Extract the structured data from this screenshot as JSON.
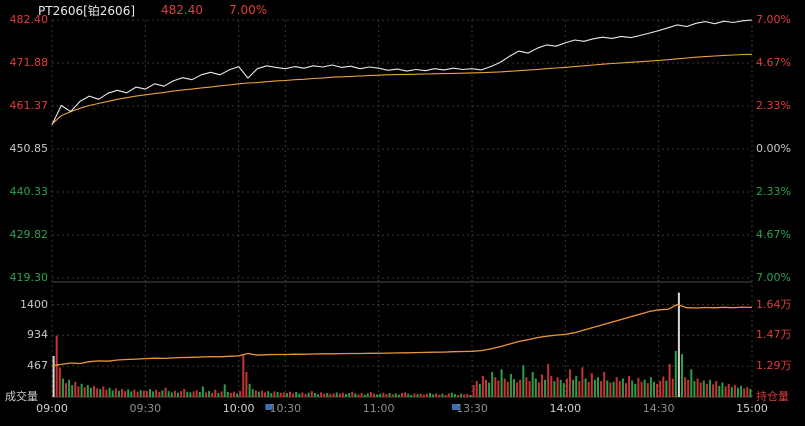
{
  "header": {
    "instrument": "PT2606[铂2606]",
    "last_price": "482.40",
    "change_pct": "7.00%"
  },
  "panel_labels": {
    "volume": "成交量",
    "open_interest": "持仓量"
  },
  "colors": {
    "up": "#c83434",
    "down": "#28a04a",
    "flat": "#d8d8d8",
    "price_line": "#e8e8e8",
    "avg_line": "#e8a33d",
    "oi_line": "#e8953a",
    "label_red": "#e03c3c",
    "label_green": "#2fa052",
    "label_white": "#c8c8c8",
    "time_bright": "#d0d0d0",
    "time_dim": "#8f8f8f",
    "grid": "#383838",
    "axis_line": "#4a4a4a",
    "break_marker_blue": "#3d6fb4",
    "background": "#000000"
  },
  "chart_data": {
    "type": "line",
    "title": "PT2606[铂2606] intraday",
    "prev_settlement": 450.85,
    "session_minutes": 225,
    "sample_step": 3,
    "price_axis": {
      "min": 419.3,
      "max": 482.4,
      "labels": [
        {
          "text": "482.40",
          "color": "red"
        },
        {
          "text": "471.88",
          "color": "red"
        },
        {
          "text": "461.37",
          "color": "red"
        },
        {
          "text": "450.85",
          "color": "white"
        },
        {
          "text": "440.33",
          "color": "green"
        },
        {
          "text": "429.82",
          "color": "green"
        },
        {
          "text": "419.30",
          "color": "green"
        }
      ]
    },
    "pct_axis": {
      "labels": [
        {
          "text": "7.00%",
          "color": "red"
        },
        {
          "text": "4.67%",
          "color": "red"
        },
        {
          "text": "2.33%",
          "color": "red"
        },
        {
          "text": "0.00%",
          "color": "white"
        },
        {
          "text": "2.33%",
          "color": "green"
        },
        {
          "text": "4.67%",
          "color": "green"
        },
        {
          "text": "7.00%",
          "color": "green"
        }
      ]
    },
    "volume_axis": {
      "labels": [
        "1400",
        "934",
        "467"
      ],
      "values": [
        1400,
        934,
        467
      ],
      "max": 1680
    },
    "oi_axis": {
      "labels": [
        "1.64万",
        "1.47万",
        "1.29万"
      ],
      "values": [
        1.64,
        1.47,
        1.29
      ],
      "color": "red"
    },
    "x_ticks": [
      {
        "label": "09:00",
        "minute": 0,
        "bright": true
      },
      {
        "label": "09:30",
        "minute": 30,
        "bright": false
      },
      {
        "label": "10:00",
        "minute": 60,
        "bright": true
      },
      {
        "label": "10:30",
        "minute": 75,
        "bright": false
      },
      {
        "label": "11:00",
        "minute": 105,
        "bright": false
      },
      {
        "label": "13:30",
        "minute": 135,
        "bright": false
      },
      {
        "label": "14:00",
        "minute": 165,
        "bright": true
      },
      {
        "label": "14:30",
        "minute": 195,
        "bright": false
      },
      {
        "label": "15:00",
        "minute": 225,
        "bright": true
      }
    ],
    "session_breaks": [
      75,
      135
    ],
    "price": [
      456.8,
      461.5,
      460.0,
      462.5,
      463.8,
      463.0,
      464.5,
      465.2,
      464.6,
      466.0,
      465.5,
      466.8,
      466.2,
      467.5,
      468.3,
      467.8,
      469.0,
      469.6,
      469.0,
      470.2,
      471.0,
      468.2,
      470.5,
      471.2,
      470.8,
      470.5,
      471.0,
      470.6,
      471.2,
      470.9,
      471.4,
      470.8,
      471.1,
      470.5,
      470.9,
      470.6,
      470.1,
      470.4,
      469.9,
      470.3,
      470.0,
      470.5,
      470.2,
      470.6,
      470.3,
      470.5,
      470.2,
      471.0,
      472.0,
      473.5,
      474.8,
      474.3,
      475.5,
      476.3,
      476.0,
      476.8,
      477.5,
      477.2,
      477.8,
      478.2,
      477.9,
      478.4,
      478.1,
      478.6,
      479.2,
      479.8,
      480.5,
      481.2,
      480.8,
      481.6,
      482.0,
      481.5,
      482.1,
      481.8,
      482.2,
      482.4
    ],
    "avg": [
      457.0,
      459.0,
      460.0,
      460.8,
      461.5,
      462.0,
      462.5,
      463.0,
      463.4,
      463.8,
      464.1,
      464.4,
      464.7,
      465.0,
      465.3,
      465.5,
      465.8,
      466.0,
      466.3,
      466.5,
      466.8,
      467.0,
      467.1,
      467.3,
      467.5,
      467.6,
      467.8,
      467.9,
      468.1,
      468.2,
      468.4,
      468.5,
      468.6,
      468.7,
      468.8,
      468.9,
      469.0,
      469.05,
      469.1,
      469.15,
      469.2,
      469.25,
      469.3,
      469.35,
      469.4,
      469.45,
      469.5,
      469.6,
      469.7,
      469.85,
      470.0,
      470.15,
      470.3,
      470.5,
      470.65,
      470.8,
      471.0,
      471.2,
      471.4,
      471.6,
      471.75,
      471.9,
      472.05,
      472.2,
      472.35,
      472.5,
      472.7,
      472.9,
      473.1,
      473.3,
      473.45,
      473.6,
      473.75,
      473.85,
      473.95,
      474.0
    ],
    "open_interest": [
      1.292,
      1.3,
      1.308,
      1.305,
      1.315,
      1.32,
      1.318,
      1.325,
      1.328,
      1.33,
      1.333,
      1.335,
      1.334,
      1.337,
      1.339,
      1.34,
      1.342,
      1.344,
      1.343,
      1.346,
      1.348,
      1.362,
      1.352,
      1.355,
      1.356,
      1.356,
      1.358,
      1.357,
      1.359,
      1.36,
      1.36,
      1.361,
      1.362,
      1.362,
      1.363,
      1.363,
      1.364,
      1.365,
      1.366,
      1.367,
      1.368,
      1.369,
      1.37,
      1.372,
      1.373,
      1.374,
      1.378,
      1.388,
      1.4,
      1.415,
      1.43,
      1.44,
      1.452,
      1.46,
      1.466,
      1.47,
      1.48,
      1.495,
      1.51,
      1.525,
      1.54,
      1.555,
      1.57,
      1.585,
      1.6,
      1.61,
      1.613,
      1.64,
      1.622,
      1.62,
      1.623,
      1.621,
      1.624,
      1.622,
      1.625,
      1.623
    ],
    "volume": [
      620,
      930,
      450,
      280,
      210,
      260,
      180,
      230,
      160,
      200,
      150,
      180,
      140,
      170,
      130,
      120,
      160,
      110,
      140,
      100,
      130,
      95,
      120,
      90,
      115,
      85,
      110,
      80,
      105,
      95,
      90,
      120,
      85,
      110,
      75,
      100,
      140,
      90,
      70,
      95,
      65,
      90,
      120,
      80,
      70,
      85,
      100,
      75,
      160,
      70,
      90,
      65,
      110,
      60,
      85,
      190,
      75,
      60,
      80,
      55,
      90,
      650,
      380,
      200,
      120,
      100,
      80,
      95,
      70,
      90,
      60,
      85,
      75,
      65,
      70,
      60,
      80,
      55,
      75,
      50,
      70,
      45,
      65,
      90,
      60,
      40,
      70,
      50,
      60,
      45,
      55,
      70,
      50,
      65,
      45,
      60,
      80,
      55,
      40,
      60,
      35,
      55,
      75,
      50,
      40,
      50,
      65,
      45,
      60,
      40,
      55,
      35,
      60,
      70,
      50,
      30,
      55,
      45,
      50,
      35,
      45,
      60,
      40,
      55,
      35,
      50,
      30,
      55,
      65,
      45,
      30,
      50,
      40,
      45,
      30,
      180,
      240,
      200,
      320,
      260,
      220,
      380,
      300,
      250,
      420,
      280,
      230,
      350,
      270,
      220,
      260,
      480,
      300,
      240,
      380,
      280,
      220,
      340,
      260,
      500,
      320,
      240,
      300,
      260,
      210,
      280,
      420,
      260,
      320,
      240,
      450,
      280,
      230,
      360,
      260,
      300,
      240,
      380,
      250,
      220,
      230,
      300,
      240,
      280,
      210,
      320,
      250,
      200,
      290,
      230,
      260,
      210,
      300,
      230,
      200,
      240,
      310,
      250,
      500,
      280,
      700,
      1580,
      650,
      300,
      260,
      420,
      240,
      280,
      220,
      250,
      200,
      260,
      190,
      240,
      170,
      220,
      160,
      200,
      150,
      180,
      140,
      170,
      130,
      150,
      120
    ],
    "volume_colors": [
      "WRRGRGGRRGRGGRR",
      "GRRGGRGRRGGRRGR",
      "RGGRRGRGGRGRRGG",
      "RRGGRGRRGRGGRRG",
      "RRRGGRGRRGGRGRR",
      "GRRGGRRGRGGRRGR",
      "RGRRGGRGRRGGRRG",
      "GRRGRGGRRGGRGRR",
      "RGGRRGRRGGRGRRG",
      "RRGRRGGRRGRRGGR",
      "RGRRGGRRGRRGRGG",
      "RRGGRRGRRGGRRGR",
      "GRRGRRGGRRGRGGR",
      "RRGRRGWGRRGGRRG",
      "RGRRGGRRGRGGRRG"
    ]
  }
}
